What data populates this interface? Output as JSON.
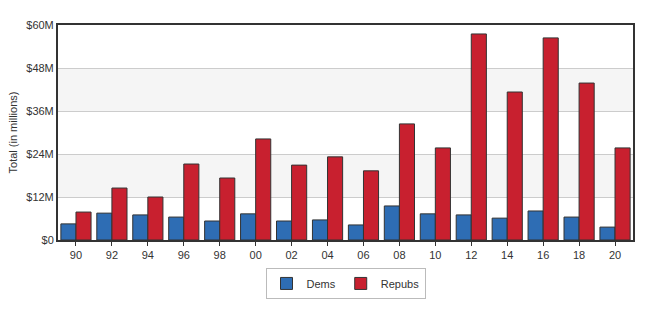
{
  "chart_data": {
    "type": "bar",
    "y_label": "Total (in millions)",
    "categories": [
      "90",
      "92",
      "94",
      "96",
      "98",
      "00",
      "02",
      "04",
      "06",
      "08",
      "10",
      "12",
      "14",
      "16",
      "18",
      "20"
    ],
    "series": [
      {
        "name": "Dems",
        "color": "#2e6db4",
        "values": [
          4.5,
          7.5,
          7.0,
          6.4,
          5.3,
          7.3,
          5.3,
          5.6,
          4.2,
          9.5,
          7.3,
          7.0,
          6.1,
          8.1,
          6.4,
          3.6
        ]
      },
      {
        "name": "Repubs",
        "color": "#c8202f",
        "values": [
          7.8,
          14.5,
          12.0,
          21.2,
          17.3,
          28.2,
          20.9,
          23.2,
          19.3,
          32.4,
          25.7,
          57.5,
          41.3,
          56.4,
          43.8,
          25.7
        ]
      }
    ],
    "ylim": [
      0,
      60
    ],
    "yticks": [
      {
        "value": 0,
        "label": "$0"
      },
      {
        "value": 12,
        "label": "$12M"
      },
      {
        "value": 24,
        "label": "$24M"
      },
      {
        "value": 36,
        "label": "$36M"
      },
      {
        "value": 48,
        "label": "$48M"
      },
      {
        "value": 60,
        "label": "$60M"
      }
    ],
    "grid": true,
    "legend": "bottom"
  }
}
